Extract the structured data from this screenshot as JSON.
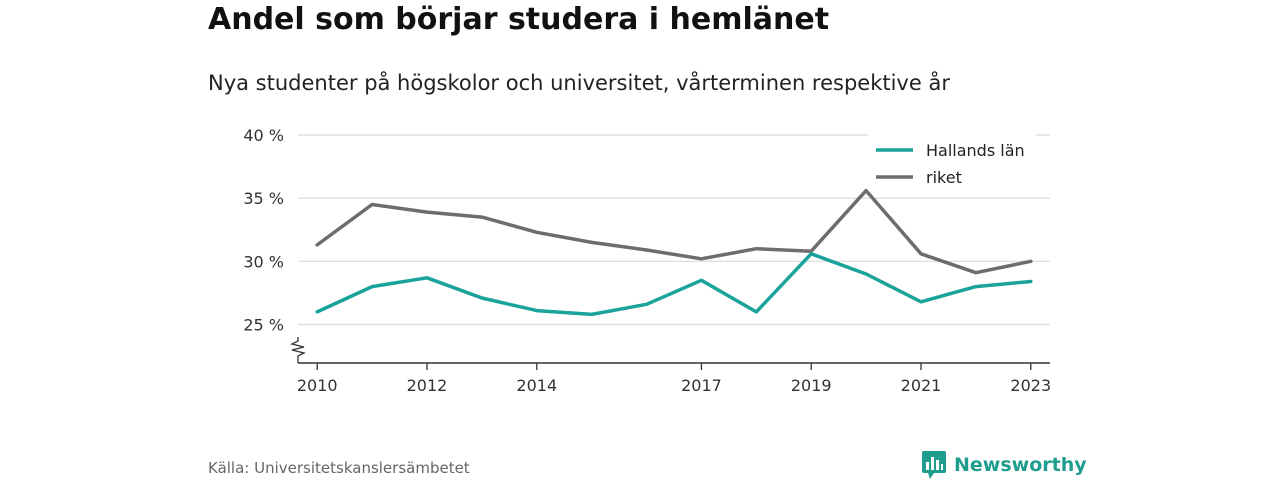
{
  "header": {
    "title": "Andel som börjar studera i hemlänet",
    "subtitle": "Nya studenter på högskolor och universitet, vårterminen respektive år"
  },
  "footer": {
    "source": "Källa: Universitetskanslersämbetet",
    "brand": "Newsworthy",
    "brand_icon": "bar-chart-bubble-icon"
  },
  "colors": {
    "hallands": "#1aa39a",
    "riket": "#6e6c70",
    "grid": "#d9d9d9",
    "axis": "#333333",
    "brand": "#1f9e8f"
  },
  "chart_data": {
    "type": "line",
    "title": "Andel som börjar studera i hemlänet",
    "subtitle": "Nya studenter på högskolor och universitet, vårterminen respektive år",
    "xlabel": "",
    "ylabel": "",
    "x": [
      2010,
      2011,
      2012,
      2013,
      2014,
      2015,
      2016,
      2017,
      2018,
      2019,
      2020,
      2021,
      2022,
      2023
    ],
    "x_ticks": [
      2010,
      2012,
      2014,
      2017,
      2019,
      2021,
      2023
    ],
    "y_ticks": [
      25,
      30,
      35,
      40
    ],
    "y_tick_labels": [
      "25 %",
      "30 %",
      "35 %",
      "40 %"
    ],
    "ylim": [
      22,
      40
    ],
    "y_axis_break": true,
    "grid": true,
    "legend_position": "top-right",
    "series": [
      {
        "name": "Hallands län",
        "color": "#1aa39a",
        "values": [
          26.0,
          28.0,
          28.7,
          27.1,
          26.1,
          25.8,
          26.6,
          28.5,
          26.0,
          30.6,
          29.0,
          26.8,
          28.0,
          28.4
        ]
      },
      {
        "name": "riket",
        "color": "#6e6c70",
        "values": [
          31.3,
          34.5,
          33.9,
          33.5,
          32.3,
          31.5,
          30.9,
          30.2,
          31.0,
          30.8,
          35.6,
          30.6,
          29.1,
          30.0
        ]
      }
    ]
  }
}
